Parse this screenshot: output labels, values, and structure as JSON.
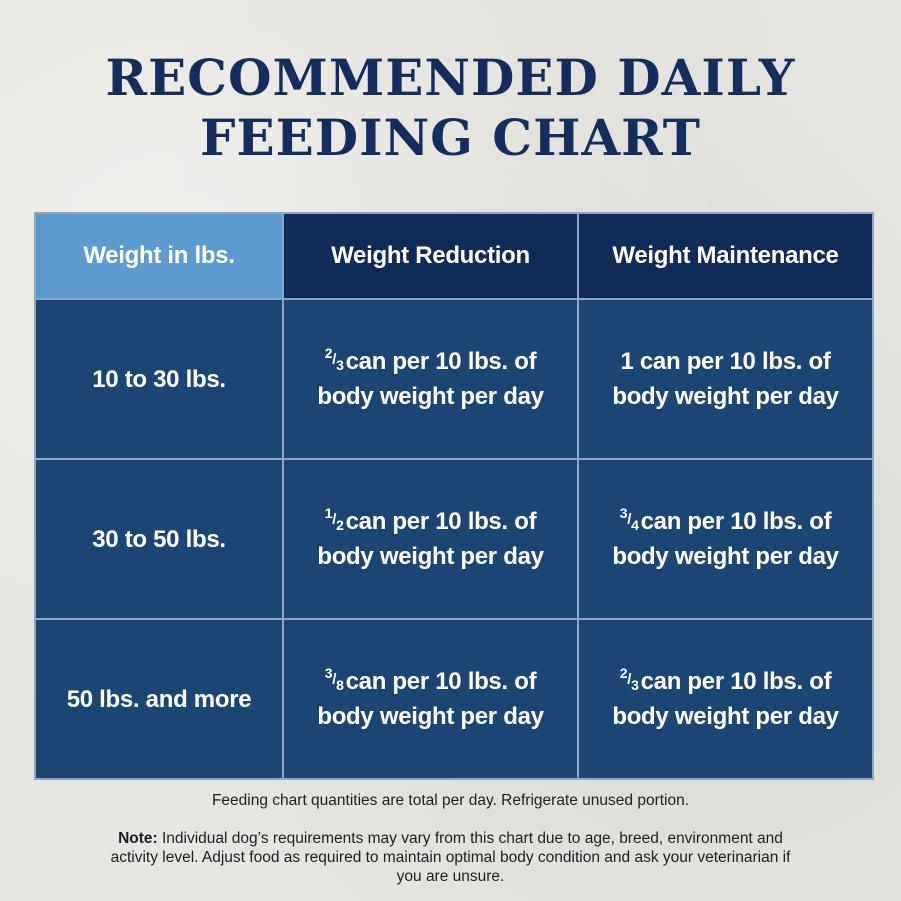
{
  "title": {
    "line1": "RECOMMENDED DAILY",
    "line2": "FEEDING CHART"
  },
  "table": {
    "headers": [
      "Weight in lbs.",
      "Weight Reduction",
      "Weight Maintenance"
    ],
    "rows": [
      {
        "weight": "10 to 30 lbs.",
        "reduction": {
          "fraction_num": "2",
          "fraction_den": "3",
          "line1_rest": "can per 10 lbs. of",
          "line2": "body weight per day"
        },
        "maintenance": {
          "fraction_num": "",
          "fraction_den": "",
          "line1_rest": "1 can per 10 lbs. of",
          "line2": "body weight per day"
        }
      },
      {
        "weight": "30 to 50 lbs.",
        "reduction": {
          "fraction_num": "1",
          "fraction_den": "2",
          "line1_rest": "can per 10 lbs. of",
          "line2": "body weight per day"
        },
        "maintenance": {
          "fraction_num": "3",
          "fraction_den": "4",
          "line1_rest": "can per 10 lbs. of",
          "line2": "body weight per day"
        }
      },
      {
        "weight": "50 lbs. and more",
        "reduction": {
          "fraction_num": "3",
          "fraction_den": "8",
          "line1_rest": "can per 10 lbs. of",
          "line2": "body weight per day"
        },
        "maintenance": {
          "fraction_num": "2",
          "fraction_den": "3",
          "line1_rest": "can per 10 lbs. of",
          "line2": "body weight per day"
        }
      }
    ]
  },
  "footnote": "Feeding chart quantities are total per day. Refrigerate unused portion.",
  "note": {
    "label": "Note:",
    "text": "Individual dog’s requirements may vary from this chart due to age, breed, environment and activity level. Adjust food as required to maintain optimal body condition and ask your veterinarian if you are unsure."
  },
  "colors": {
    "title": "#132d5c",
    "header_weight_bg": "#5d9bce",
    "header_dark_bg": "#112a57",
    "cell_bg": "#1d4573",
    "background": "#e7e6e2"
  }
}
